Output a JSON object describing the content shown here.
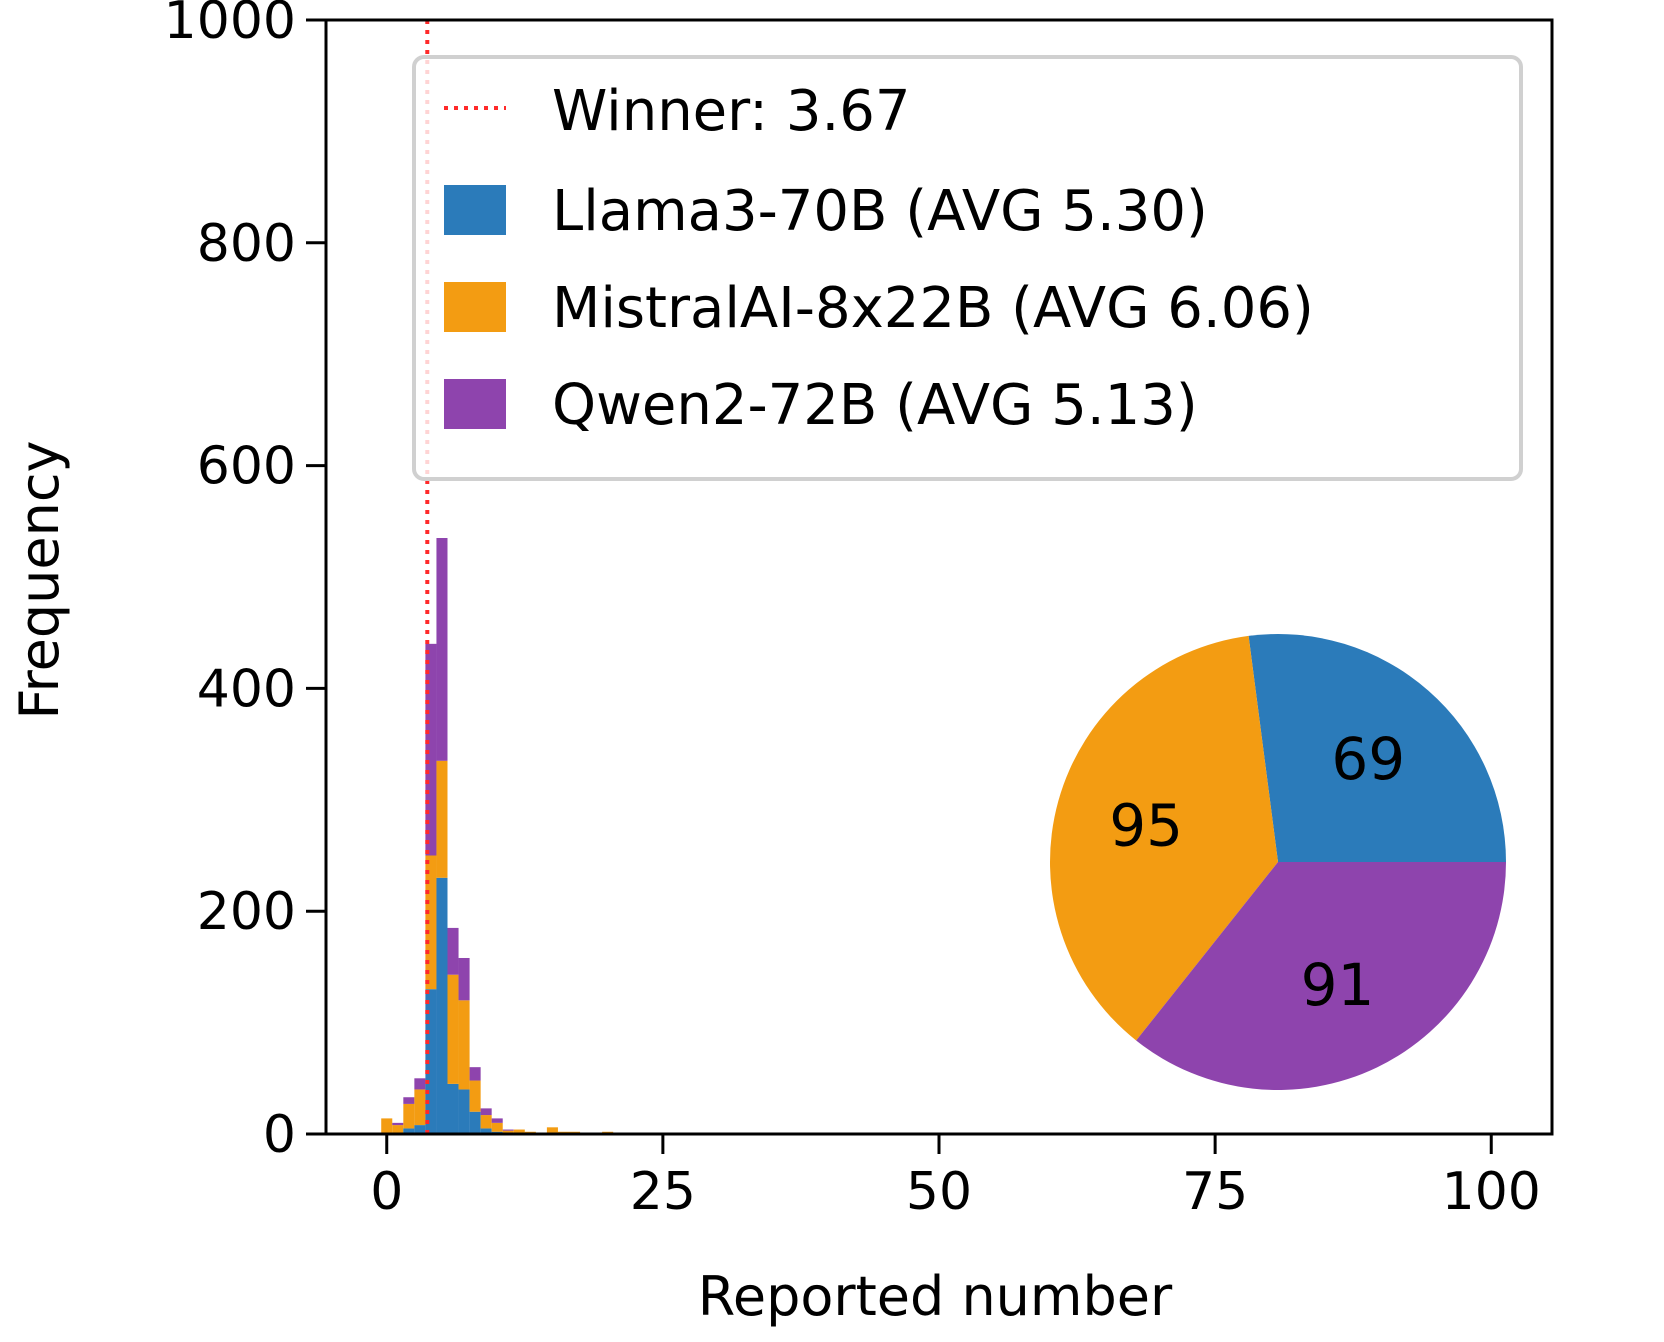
{
  "chart_data": [
    {
      "type": "bar",
      "stacked": true,
      "xlabel": "Reported number",
      "ylabel": "Frequency",
      "xlim": [
        -5.5,
        105.5
      ],
      "ylim": [
        0,
        1000
      ],
      "xticks": [
        0,
        25,
        50,
        75,
        100
      ],
      "yticks": [
        0,
        200,
        400,
        600,
        800,
        1000
      ],
      "bin_width": 1,
      "reference_line": {
        "label": "Winner: 3.67",
        "x": 3.67,
        "color": "#ff2a2a",
        "style": "dotted"
      },
      "categories": [
        0,
        1,
        2,
        3,
        4,
        5,
        6,
        7,
        8,
        9,
        10,
        11,
        12,
        13,
        14,
        15,
        16,
        17,
        20
      ],
      "series": [
        {
          "name": "Llama3-70B (AVG 5.30)",
          "color": "#2b7bba",
          "values": [
            0,
            0,
            5,
            8,
            130,
            230,
            45,
            40,
            20,
            5,
            2,
            0,
            0,
            0,
            0,
            0,
            0,
            0,
            0
          ]
        },
        {
          "name": "MistralAI-8x22B (AVG 6.06)",
          "color": "#f39c12",
          "values": [
            14,
            8,
            22,
            32,
            120,
            105,
            98,
            80,
            28,
            12,
            8,
            3,
            4,
            2,
            1,
            6,
            2,
            2,
            2
          ]
        },
        {
          "name": "Qwen2-72B (AVG 5.13)",
          "color": "#8e44ad",
          "values": [
            0,
            2,
            6,
            10,
            190,
            200,
            42,
            38,
            12,
            6,
            4,
            1,
            0,
            0,
            0,
            0,
            0,
            0,
            0
          ]
        }
      ],
      "legend_position": "top-right"
    },
    {
      "type": "pie",
      "start_angle_deg": 0,
      "slices": [
        {
          "label": "Llama3-70B",
          "value": 69,
          "color": "#2b7bba"
        },
        {
          "label": "MistralAI-8x22B",
          "value": 95,
          "color": "#f39c12"
        },
        {
          "label": "Qwen2-72B",
          "value": 91,
          "color": "#8e44ad"
        }
      ],
      "position": "inset lower-right"
    }
  ]
}
